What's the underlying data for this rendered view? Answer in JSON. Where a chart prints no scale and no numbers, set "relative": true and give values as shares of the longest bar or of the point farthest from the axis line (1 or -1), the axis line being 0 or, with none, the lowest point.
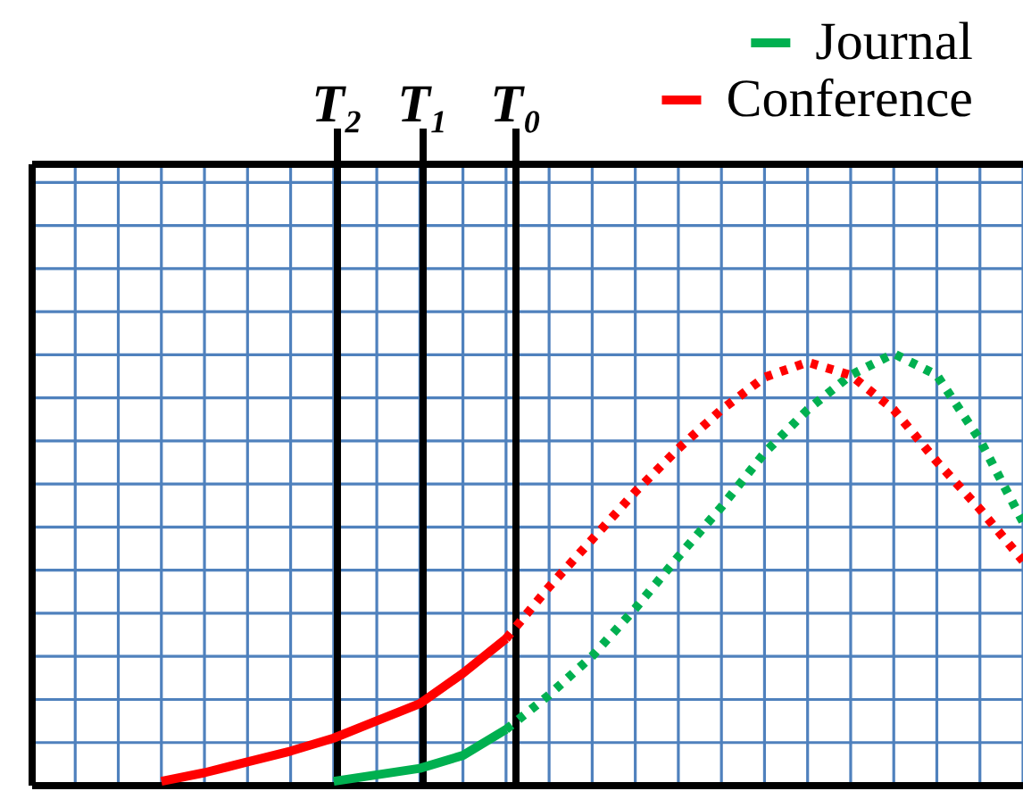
{
  "chart_data": {
    "type": "line",
    "relative": true,
    "categories": [
      null,
      null,
      null,
      null,
      null,
      null,
      null,
      null,
      null,
      null,
      null,
      null,
      null,
      null,
      null,
      null,
      null,
      null,
      null,
      null,
      null,
      null,
      null,
      null
    ],
    "grid": true,
    "legend": "top right",
    "series": [
      {
        "name": "Journal",
        "color": "#00b050",
        "line_style": "solid",
        "values": [
          null,
          null,
          null,
          null,
          null,
          null,
          null,
          0.01,
          0.025,
          0.04,
          0.07,
          0.13,
          null,
          null,
          null,
          null,
          null,
          null,
          null,
          null,
          null,
          null,
          null,
          null
        ]
      },
      {
        "name": "Conference",
        "color": "#ff0000",
        "line_style": "solid",
        "values": [
          null,
          null,
          null,
          0.01,
          0.03,
          0.055,
          0.08,
          0.11,
          0.15,
          0.19,
          0.26,
          0.34,
          null,
          null,
          null,
          null,
          null,
          null,
          null,
          null,
          null,
          null,
          null,
          null
        ]
      },
      {
        "color": "#00b050",
        "line_style": "dotted",
        "values": [
          null,
          null,
          null,
          null,
          null,
          null,
          null,
          null,
          null,
          null,
          null,
          0.13,
          0.21,
          0.3,
          0.41,
          0.53,
          0.645,
          0.77,
          0.87,
          0.95,
          1,
          0.95,
          0.8,
          0.61
        ]
      },
      {
        "color": "#ff0000",
        "line_style": "dotted",
        "values": [
          null,
          null,
          null,
          null,
          null,
          null,
          null,
          null,
          null,
          null,
          null,
          0.34,
          0.46,
          0.57,
          0.68,
          0.78,
          0.87,
          0.945,
          0.98,
          0.95,
          0.87,
          0.75,
          0.64,
          0.52
        ]
      }
    ],
    "annotations": [
      "T₂",
      "T₁",
      "T₀"
    ]
  }
}
